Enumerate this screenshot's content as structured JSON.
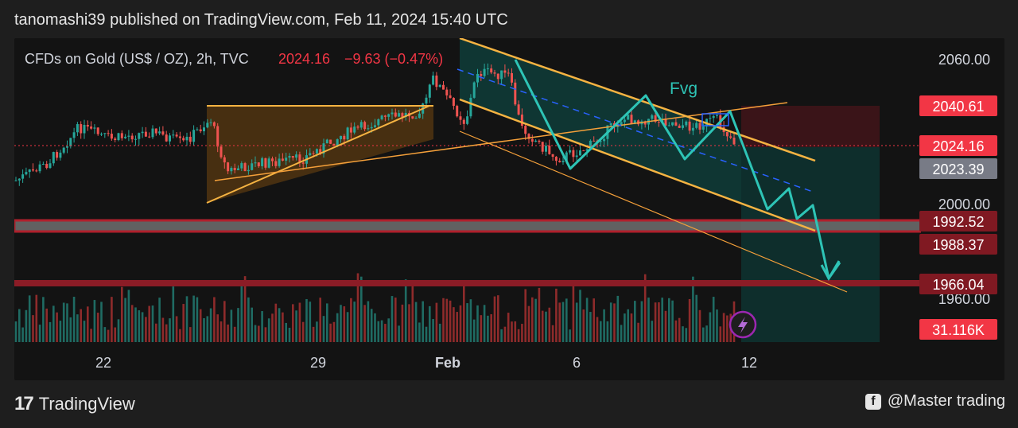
{
  "header": {
    "text": "tanomashi39 published on TradingView.com, Feb 11, 2024 15:40 UTC"
  },
  "footer": {
    "brand": "TradingView",
    "attribution": "@Master trading"
  },
  "chart_data": {
    "type": "candlestick",
    "symbol_text": "CFDs on Gold (US$ / OZ), 2h, TVC",
    "last_price": "2024.16",
    "change": "−9.63 (−0.47%)",
    "annotation": "Fvg",
    "y_ticks": [
      "2060.00",
      "2000.00",
      "1960.00"
    ],
    "x_ticks": [
      "22",
      "29",
      "Feb",
      "6",
      "12"
    ],
    "price_labels": [
      {
        "text": "2040.61",
        "color": "#f23645"
      },
      {
        "text": "2024.16",
        "color": "#f23645"
      },
      {
        "text": "2023.39",
        "color": "#787b86"
      },
      {
        "text": "1992.52",
        "color": "#801922"
      },
      {
        "text": "1988.37",
        "color": "#801922"
      },
      {
        "text": "1966.04",
        "color": "#801922"
      },
      {
        "text": "31.116K",
        "color": "#f23645"
      }
    ],
    "colors": {
      "up": "#26a69a",
      "down": "#ef5350",
      "trendline": "#f5b342",
      "zigzag": "#2ec4b6",
      "flag_box": "#2962ff"
    }
  }
}
